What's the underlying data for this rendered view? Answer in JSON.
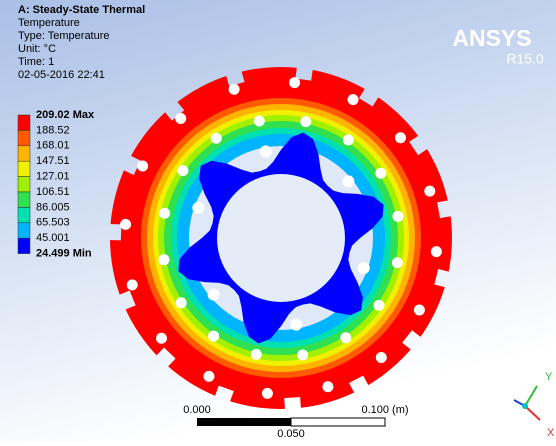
{
  "header": {
    "title": "A: Steady-State Thermal",
    "lines": [
      "Temperature",
      "Type: Temperature",
      "Unit: °C",
      "Time: 1",
      "02-05-2016 22:41"
    ]
  },
  "logo": {
    "name": "ANSYS",
    "version": "R15.0"
  },
  "legend": {
    "labels": [
      "209.02 Max",
      "188.52",
      "168.01",
      "147.51",
      "127.01",
      "106.51",
      "86.005",
      "65.503",
      "45.001",
      "24.499 Min"
    ],
    "colors": [
      "#ff0000",
      "#ff5a00",
      "#ffb400",
      "#f0f000",
      "#a0f000",
      "#30e050",
      "#00e0b0",
      "#00b4ff",
      "#0000ff"
    ]
  },
  "scale_bar": {
    "start": "0.000",
    "end": "0.100 (m)",
    "middle": "0.050"
  },
  "triad": {
    "y": "Y",
    "x": "X"
  }
}
